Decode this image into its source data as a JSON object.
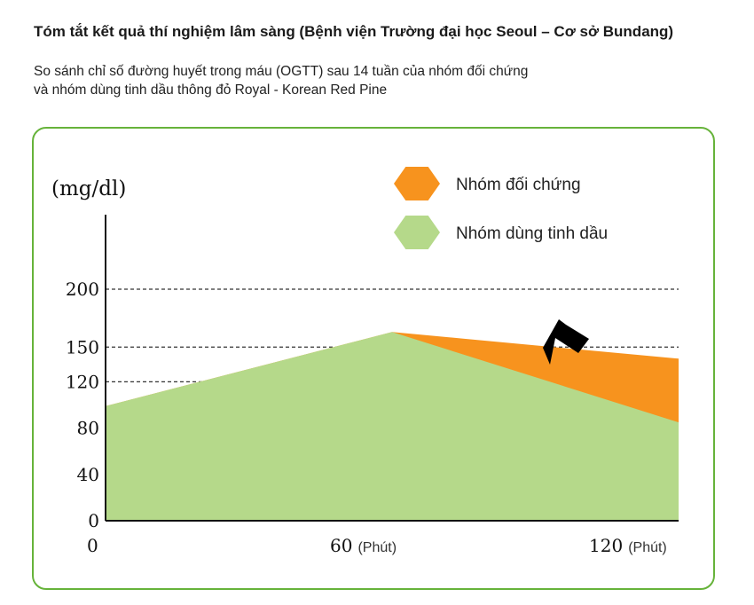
{
  "header": {
    "title": "Tóm tắt kết quả thí nghiệm lâm sàng (Bệnh viện Trường đại học Seoul – Cơ sở Bundang)",
    "subtitle_line1": "So sánh chỉ số đường huyết trong máu (OGTT) sau 14 tuần của nhóm đối chứng",
    "subtitle_line2": "và nhóm dùng tinh dầu thông đỏ Royal - Korean Red Pine"
  },
  "chart_data": {
    "type": "area",
    "title": "Tóm tắt kết quả thí nghiệm lâm sàng (Bệnh viện Trường đại học Seoul – Cơ sở Bundang)",
    "ylabel": "(mg/dl)",
    "xlabel": "",
    "x_ticks": [
      {
        "value": "0",
        "unit": ""
      },
      {
        "value": "60",
        "unit": "(Phút)"
      },
      {
        "value": "120",
        "unit": "(Phút)"
      }
    ],
    "y_ticks": [
      0,
      40,
      80,
      120,
      150,
      200
    ],
    "ylim": [
      0,
      200
    ],
    "grid": "horizontal-dashed",
    "legend_position": "top-right",
    "series": [
      {
        "name": "Nhóm đối chứng",
        "color": "#f7931e",
        "x": [
          0,
          60,
          120
        ],
        "y": [
          99,
          163,
          140
        ]
      },
      {
        "name": "Nhóm dùng tinh dầu",
        "color": "#b5d98a",
        "x": [
          0,
          60,
          120
        ],
        "y": [
          99,
          163,
          85
        ]
      }
    ],
    "annotation": "arrow-pointing-to-gap"
  }
}
